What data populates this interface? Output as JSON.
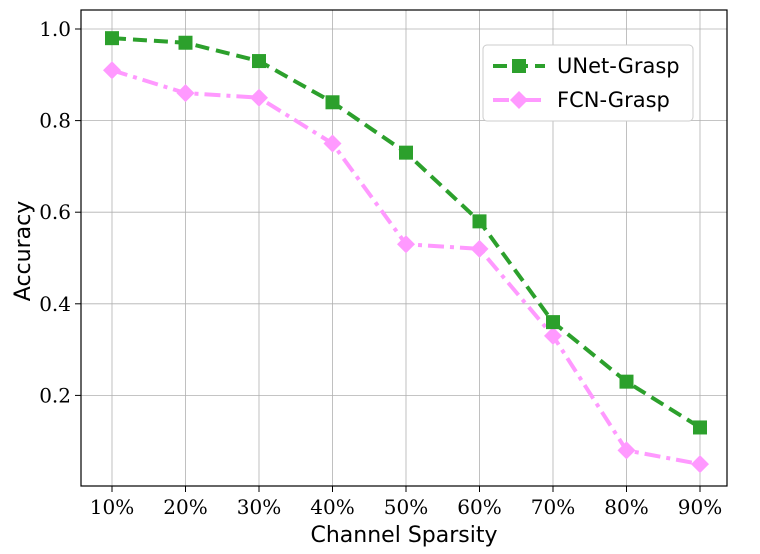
{
  "chart_data": {
    "type": "line",
    "xlabel": "Channel Sparsity",
    "ylabel": "Accuracy",
    "categories": [
      "10%",
      "20%",
      "30%",
      "40%",
      "50%",
      "60%",
      "70%",
      "80%",
      "90%"
    ],
    "ylim": [
      0.0,
      1.0
    ],
    "yticks": [
      "0.2",
      "0.4",
      "0.6",
      "0.8",
      "1.0"
    ],
    "grid": true,
    "legend_position": "top-right",
    "series": [
      {
        "name": "UNet-Grasp",
        "values": [
          0.98,
          0.97,
          0.93,
          0.84,
          0.73,
          0.58,
          0.36,
          0.23,
          0.13
        ],
        "color": "#2ca02c",
        "marker": "square",
        "linestyle": "dashed"
      },
      {
        "name": "FCN-Grasp",
        "values": [
          0.91,
          0.86,
          0.85,
          0.75,
          0.53,
          0.52,
          0.33,
          0.08,
          0.05
        ],
        "color": "#ff99ff",
        "marker": "diamond",
        "linestyle": "dashdot"
      }
    ]
  }
}
